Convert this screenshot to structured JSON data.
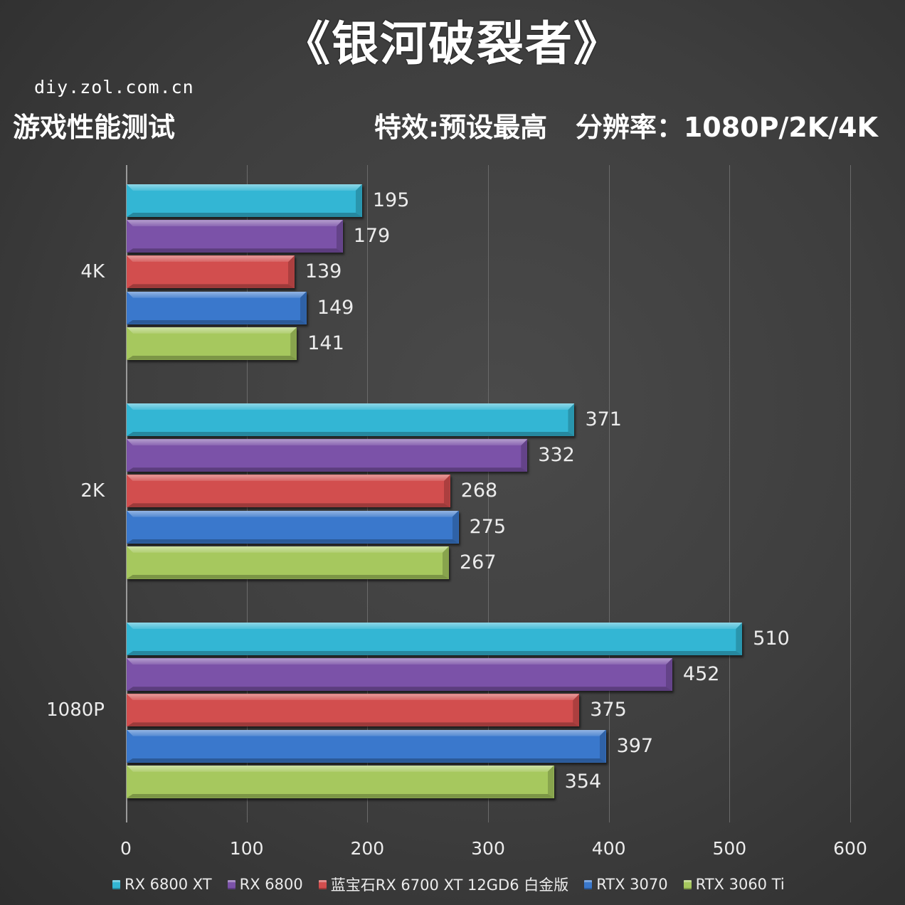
{
  "header": {
    "title": "《银河破裂者》",
    "site": "diy.zol.com.cn",
    "subtitle_left": "游戏性能测试",
    "subtitle_right": "特效:预设最高   分辨率：1080P/2K/4K"
  },
  "chart_data": {
    "type": "bar",
    "orientation": "horizontal",
    "title": "《银河破裂者》",
    "subtitle": "游戏性能测试  特效:预设最高  分辨率：1080P/2K/4K",
    "categories": [
      "4K",
      "2K",
      "1080P"
    ],
    "series": [
      {
        "name": "RX 6800 XT",
        "color": "#33b6d4",
        "values": [
          195,
          371,
          510
        ]
      },
      {
        "name": "RX 6800",
        "color": "#7b52a8",
        "values": [
          179,
          332,
          452
        ]
      },
      {
        "name": "蓝宝石RX 6700 XT 12GD6 白金版",
        "color": "#d24e4e",
        "values": [
          139,
          268,
          375
        ]
      },
      {
        "name": "RTX 3070",
        "color": "#3a78cc",
        "values": [
          149,
          275,
          397
        ]
      },
      {
        "name": "RTX 3060 Ti",
        "color": "#a6c85e",
        "values": [
          141,
          267,
          354
        ]
      }
    ],
    "xlabel": "",
    "ylabel": "",
    "xlim": [
      0,
      600
    ],
    "x_ticks": [
      "0",
      "100",
      "200",
      "300",
      "400",
      "500",
      "600"
    ],
    "grid": true,
    "legend_position": "bottom",
    "data_labels": true
  },
  "axis": {
    "x_ticks": [
      "0",
      "100",
      "200",
      "300",
      "400",
      "500",
      "600"
    ],
    "categories": [
      "4K",
      "2K",
      "1080P"
    ]
  },
  "legend": [
    {
      "label": "RX 6800 XT",
      "color": "#33b6d4"
    },
    {
      "label": "RX 6800",
      "color": "#7b52a8"
    },
    {
      "label": "蓝宝石RX 6700 XT 12GD6 白金版",
      "color": "#d24e4e"
    },
    {
      "label": "RTX 3070",
      "color": "#3a78cc"
    },
    {
      "label": "RTX 3060 Ti",
      "color": "#a6c85e"
    }
  ]
}
